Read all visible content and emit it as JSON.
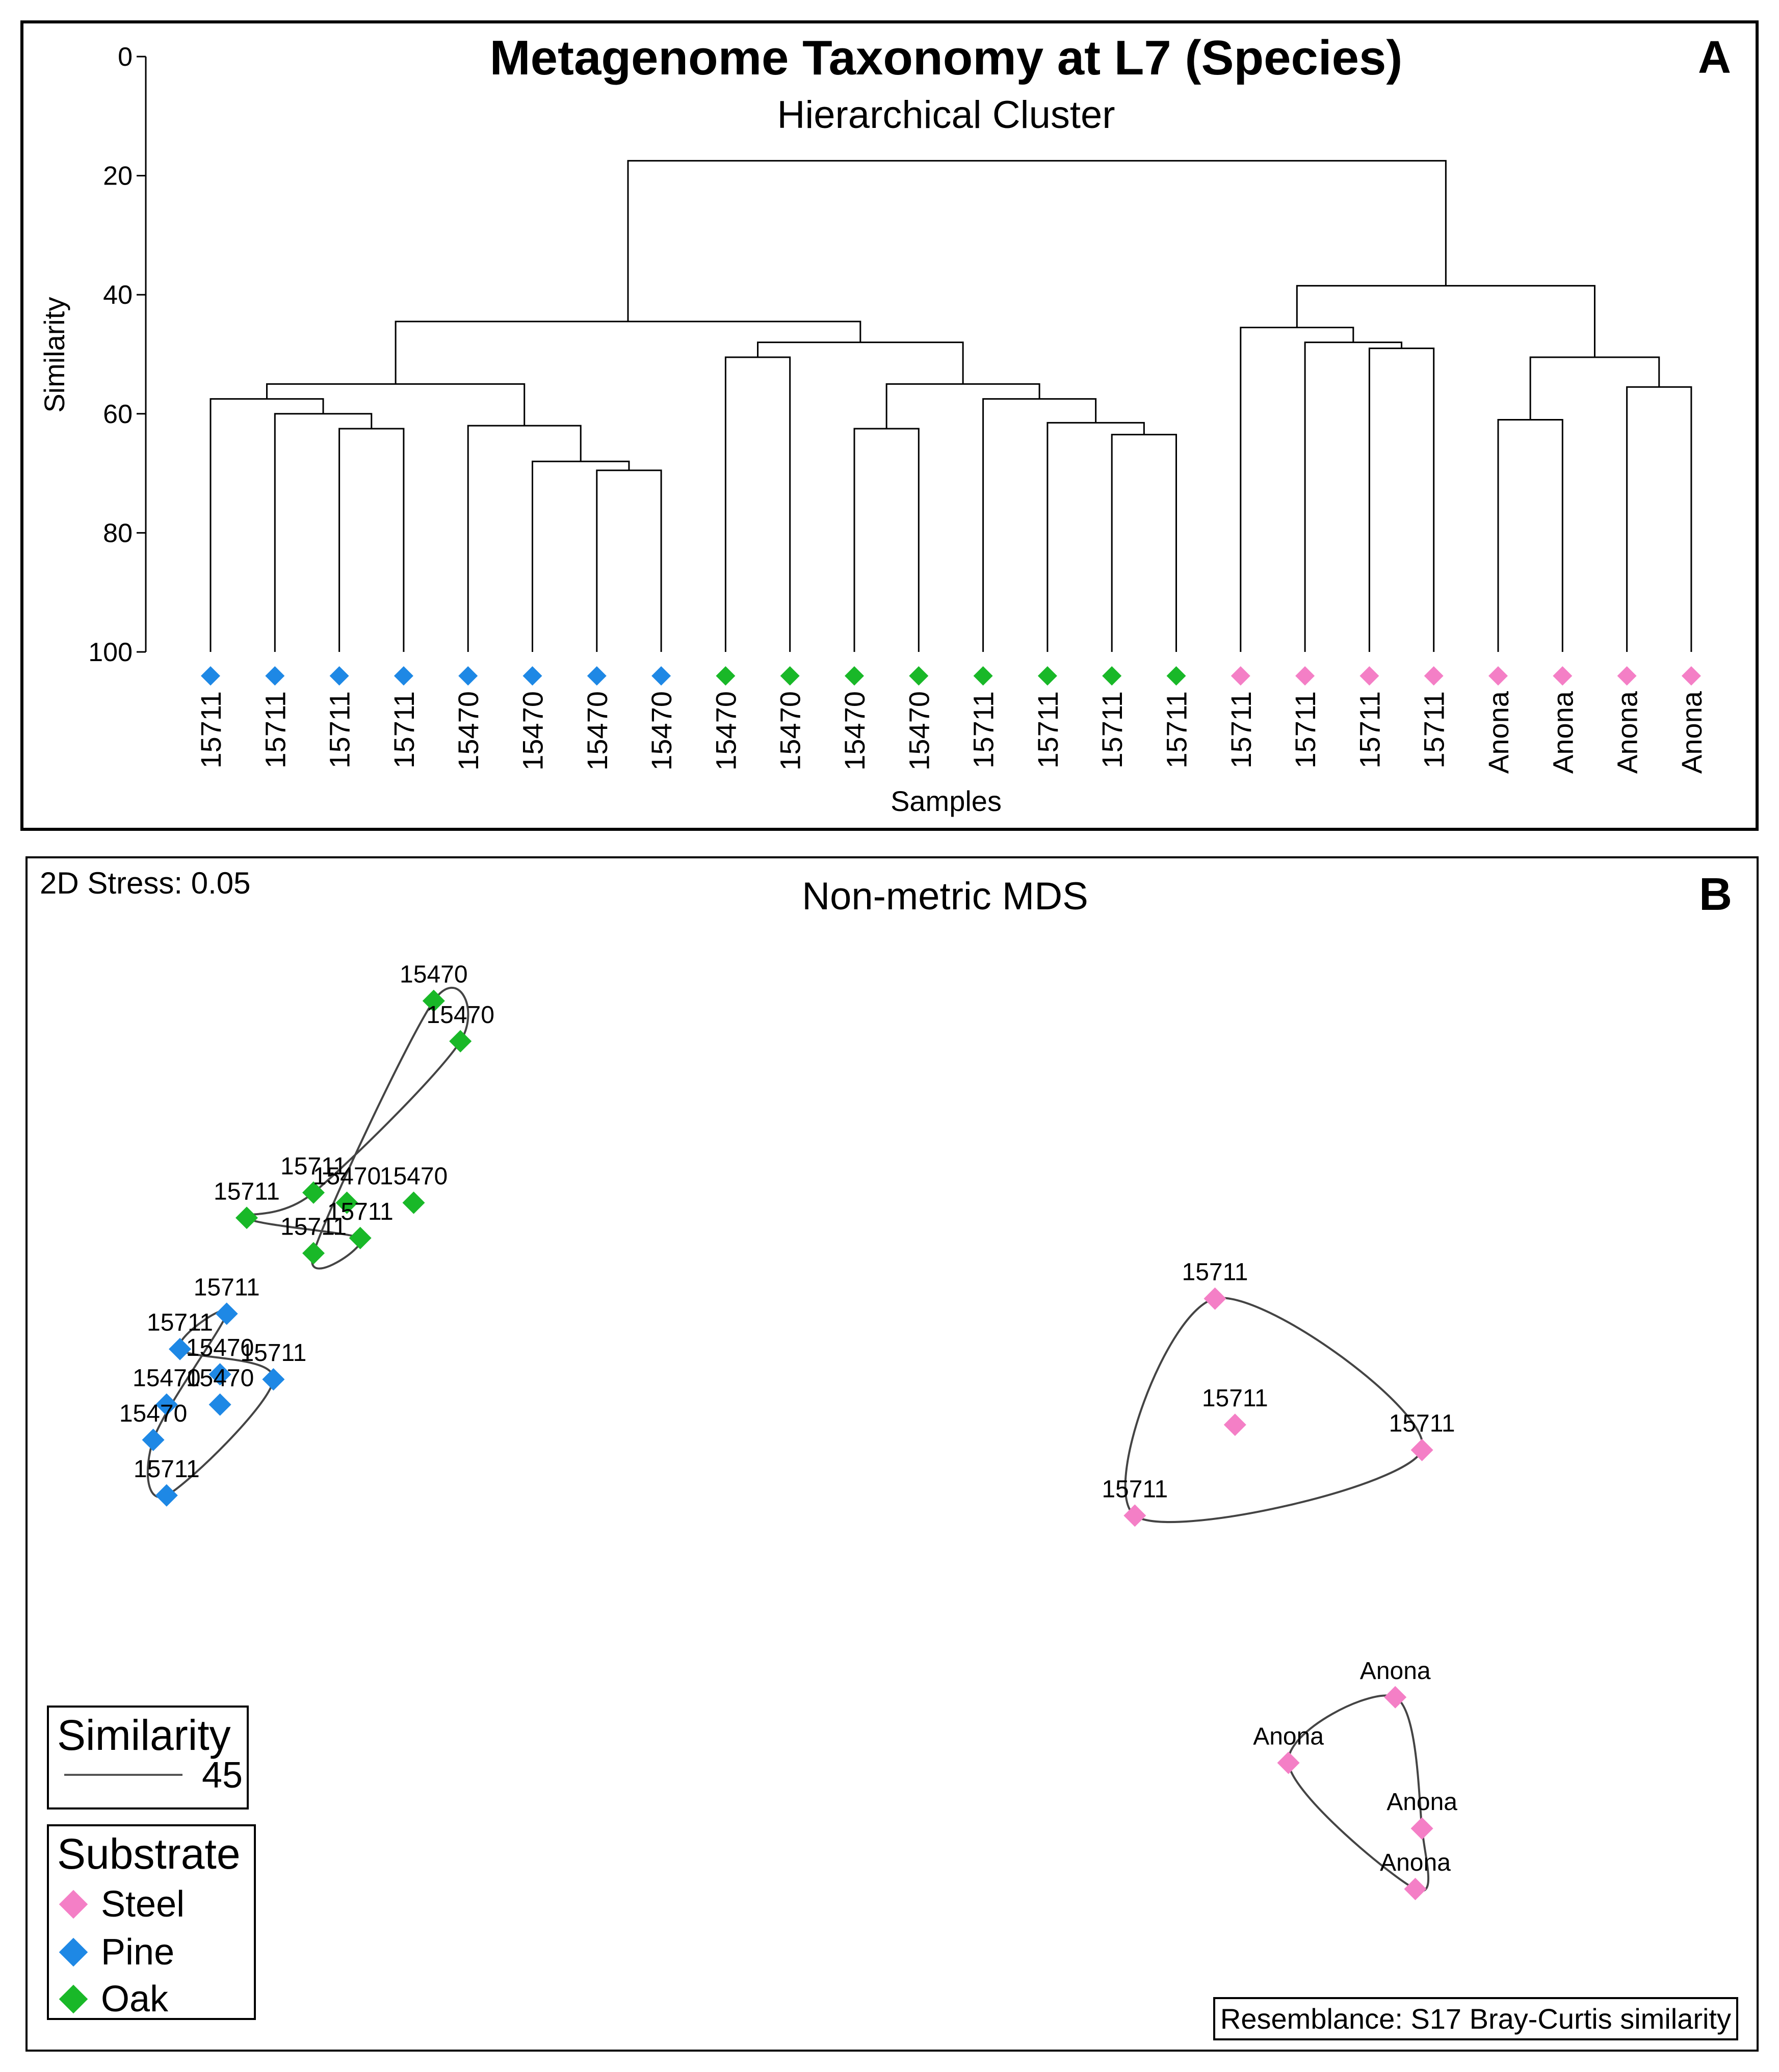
{
  "colors": {
    "Steel": "#f47fc6",
    "Pine": "#1e88e5",
    "Oak": "#19b828",
    "line": "#000000"
  },
  "chart_data": [
    {
      "type": "dendrogram",
      "panel_label": "A",
      "title": "Metagenome Taxonomy at L7 (Species)",
      "subtitle": "Hierarchical Cluster",
      "xlabel": "Samples",
      "ylabel": "Similarity",
      "ylim": [
        0,
        100
      ],
      "yticks": [
        0,
        20,
        40,
        60,
        80,
        100
      ],
      "leaves": [
        {
          "label": "15711",
          "substrate": "Pine"
        },
        {
          "label": "15711",
          "substrate": "Pine"
        },
        {
          "label": "15711",
          "substrate": "Pine"
        },
        {
          "label": "15711",
          "substrate": "Pine"
        },
        {
          "label": "15470",
          "substrate": "Pine"
        },
        {
          "label": "15470",
          "substrate": "Pine"
        },
        {
          "label": "15470",
          "substrate": "Pine"
        },
        {
          "label": "15470",
          "substrate": "Pine"
        },
        {
          "label": "15470",
          "substrate": "Oak"
        },
        {
          "label": "15470",
          "substrate": "Oak"
        },
        {
          "label": "15470",
          "substrate": "Oak"
        },
        {
          "label": "15470",
          "substrate": "Oak"
        },
        {
          "label": "15711",
          "substrate": "Oak"
        },
        {
          "label": "15711",
          "substrate": "Oak"
        },
        {
          "label": "15711",
          "substrate": "Oak"
        },
        {
          "label": "15711",
          "substrate": "Oak"
        },
        {
          "label": "15711",
          "substrate": "Steel"
        },
        {
          "label": "15711",
          "substrate": "Steel"
        },
        {
          "label": "15711",
          "substrate": "Steel"
        },
        {
          "label": "15711",
          "substrate": "Steel"
        },
        {
          "label": "Anona",
          "substrate": "Steel"
        },
        {
          "label": "Anona",
          "substrate": "Steel"
        },
        {
          "label": "Anona",
          "substrate": "Steel"
        },
        {
          "label": "Anona",
          "substrate": "Steel"
        }
      ],
      "merges": [
        [
          2,
          3,
          62.5
        ],
        [
          1,
          "m0",
          60.0
        ],
        [
          0,
          "m1",
          57.5
        ],
        [
          6,
          7,
          69.5
        ],
        [
          5,
          "m3",
          68.0
        ],
        [
          4,
          "m4",
          62.0
        ],
        [
          "m2",
          "m5",
          55.0
        ],
        [
          8,
          9,
          50.5
        ],
        [
          10,
          11,
          62.5
        ],
        [
          14,
          15,
          63.5
        ],
        [
          13,
          "m9",
          61.5
        ],
        [
          12,
          "m10",
          57.5
        ],
        [
          "m8",
          "m11",
          55.0
        ],
        [
          "m7",
          "m12",
          48.0
        ],
        [
          "m6",
          "m13",
          44.5
        ],
        [
          18,
          19,
          49.0
        ],
        [
          17,
          "m15",
          48.0
        ],
        [
          16,
          "m16",
          45.5
        ],
        [
          22,
          23,
          55.5
        ],
        [
          20,
          21,
          61.0
        ],
        [
          "m19",
          "m18",
          50.5
        ],
        [
          "m17",
          "m20",
          38.5
        ],
        [
          "m14",
          "m21",
          17.5
        ]
      ]
    },
    {
      "type": "scatter",
      "panel_label": "B",
      "title": "Non-metric MDS",
      "stress_text": "2D Stress: 0.05",
      "resemblance_text": "Resemblance: S17 Bray-Curtis similarity",
      "legend_similarity": {
        "title": "Similarity",
        "value": "45"
      },
      "legend_substrate": {
        "title": "Substrate",
        "items": [
          "Steel",
          "Pine",
          "Oak"
        ]
      },
      "points": [
        {
          "label": "15470",
          "substrate": "Oak",
          "x": 0.14,
          "y": 0.98
        },
        {
          "label": "15470",
          "substrate": "Oak",
          "x": 0.16,
          "y": 0.94
        },
        {
          "label": "15711",
          "substrate": "Oak",
          "x": 0.05,
          "y": 0.79
        },
        {
          "label": "15470",
          "substrate": "Oak",
          "x": 0.075,
          "y": 0.78
        },
        {
          "label": "15470",
          "substrate": "Oak",
          "x": 0.125,
          "y": 0.78
        },
        {
          "label": "15711",
          "substrate": "Oak",
          "x": 0.0,
          "y": 0.765
        },
        {
          "label": "15711",
          "substrate": "Oak",
          "x": 0.085,
          "y": 0.745
        },
        {
          "label": "15711",
          "substrate": "Oak",
          "x": 0.05,
          "y": 0.73
        },
        {
          "label": "15711",
          "substrate": "Pine",
          "x": -0.015,
          "y": 0.67
        },
        {
          "label": "15711",
          "substrate": "Pine",
          "x": -0.05,
          "y": 0.635
        },
        {
          "label": "15470",
          "substrate": "Pine",
          "x": -0.02,
          "y": 0.61
        },
        {
          "label": "15711",
          "substrate": "Pine",
          "x": 0.02,
          "y": 0.605
        },
        {
          "label": "15470",
          "substrate": "Pine",
          "x": -0.06,
          "y": 0.58
        },
        {
          "label": "15470",
          "substrate": "Pine",
          "x": -0.02,
          "y": 0.58
        },
        {
          "label": "15470",
          "substrate": "Pine",
          "x": -0.07,
          "y": 0.545
        },
        {
          "label": "15711",
          "substrate": "Pine",
          "x": -0.06,
          "y": 0.49
        },
        {
          "label": "15711",
          "substrate": "Steel",
          "x": 0.725,
          "y": 0.685
        },
        {
          "label": "15711",
          "substrate": "Steel",
          "x": 0.74,
          "y": 0.56
        },
        {
          "label": "15711",
          "substrate": "Steel",
          "x": 0.88,
          "y": 0.535
        },
        {
          "label": "15711",
          "substrate": "Steel",
          "x": 0.665,
          "y": 0.47
        },
        {
          "label": "Anona",
          "substrate": "Steel",
          "x": 0.86,
          "y": 0.29
        },
        {
          "label": "Anona",
          "substrate": "Steel",
          "x": 0.78,
          "y": 0.225
        },
        {
          "label": "Anona",
          "substrate": "Steel",
          "x": 0.88,
          "y": 0.16
        },
        {
          "label": "Anona",
          "substrate": "Steel",
          "x": 0.875,
          "y": 0.1
        }
      ]
    }
  ]
}
